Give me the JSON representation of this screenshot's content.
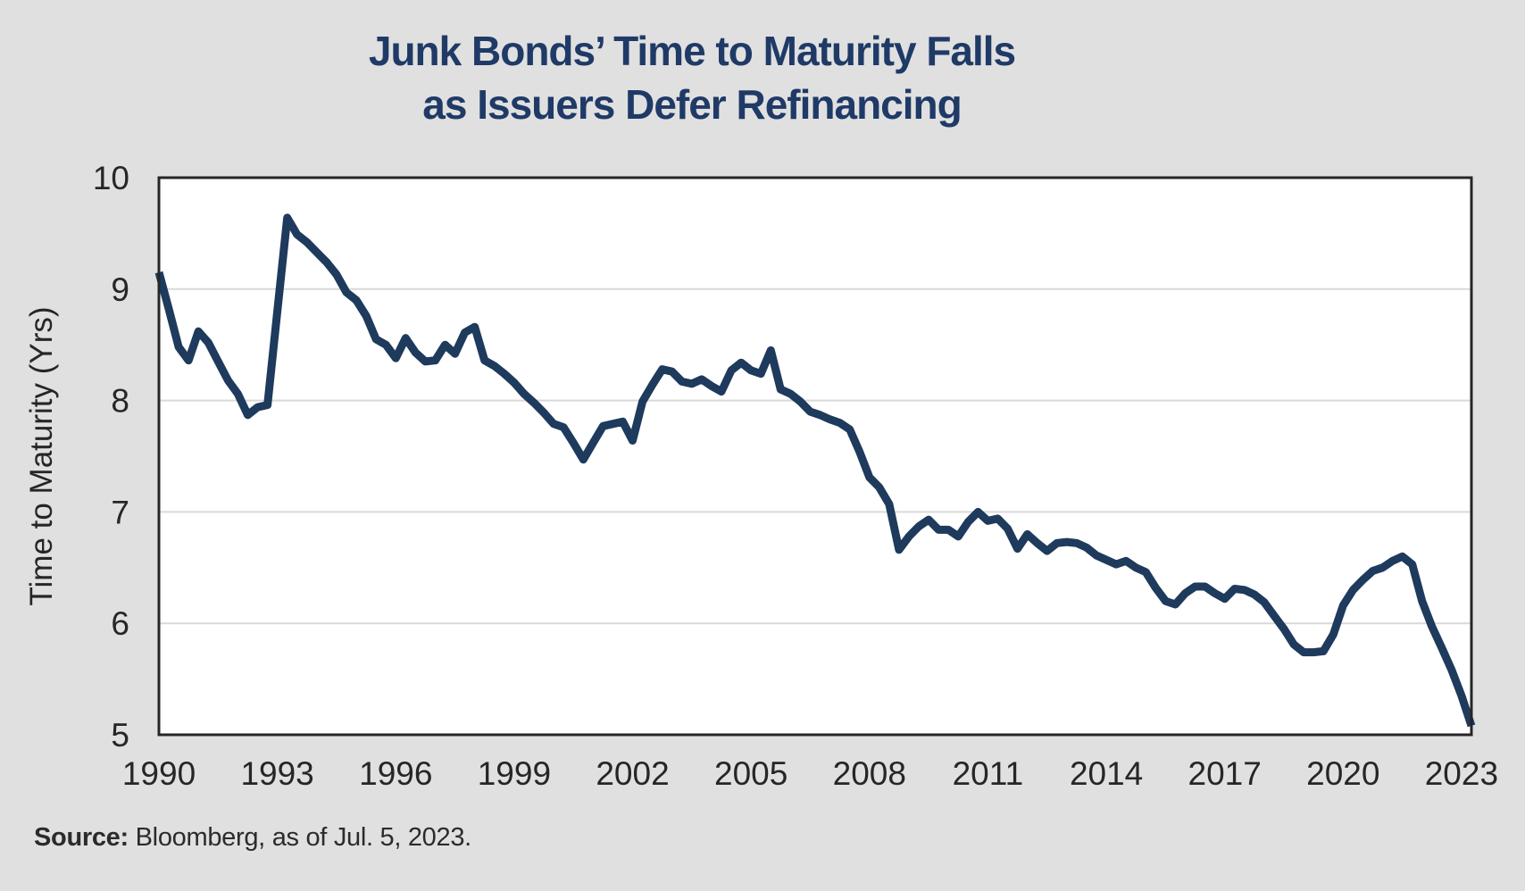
{
  "title": {
    "line1": "Junk Bonds’ Time to Maturity Falls",
    "line2": "as Issuers Defer Refinancing"
  },
  "source": {
    "label": "Source:",
    "text": " Bloomberg, as of Jul. 5, 2023."
  },
  "chart_data": {
    "type": "line",
    "title": "Junk Bonds’ Time to Maturity Falls as Issuers Defer Refinancing",
    "xlabel": "",
    "ylabel": "Time to Maturity (Yrs)",
    "ylim": [
      5,
      10
    ],
    "xlim": [
      1990,
      2023.25
    ],
    "y_ticks": [
      5,
      6,
      7,
      8,
      9,
      10
    ],
    "x_ticks": [
      1990,
      1993,
      1996,
      1999,
      2002,
      2005,
      2008,
      2011,
      2014,
      2017,
      2020,
      2023
    ],
    "grid": "horizontal",
    "legend": "none",
    "colors": {
      "line": "#1e3a5c",
      "title": "#1f3a66",
      "grid": "#d9d9d9",
      "axis": "#262626",
      "plot_bg": "#ffffff",
      "page_bg": "#e0e0e0",
      "text": "#262626"
    },
    "series": [
      {
        "name": "Time to Maturity (Yrs)",
        "x": [
          1990.0,
          1990.25,
          1990.5,
          1990.75,
          1991.0,
          1991.25,
          1991.5,
          1991.75,
          1992.0,
          1992.25,
          1992.5,
          1992.75,
          1993.0,
          1993.25,
          1993.5,
          1993.75,
          1994.0,
          1994.25,
          1994.5,
          1994.75,
          1995.0,
          1995.25,
          1995.5,
          1995.75,
          1996.0,
          1996.25,
          1996.5,
          1996.75,
          1997.0,
          1997.25,
          1997.5,
          1997.75,
          1998.0,
          1998.25,
          1998.5,
          1998.75,
          1999.0,
          1999.25,
          1999.5,
          1999.75,
          2000.0,
          2000.25,
          2000.5,
          2000.75,
          2001.0,
          2001.25,
          2001.5,
          2001.75,
          2002.0,
          2002.25,
          2002.5,
          2002.75,
          2003.0,
          2003.25,
          2003.5,
          2003.75,
          2004.0,
          2004.25,
          2004.5,
          2004.75,
          2005.0,
          2005.25,
          2005.5,
          2005.75,
          2006.0,
          2006.25,
          2006.5,
          2006.75,
          2007.0,
          2007.25,
          2007.5,
          2007.75,
          2008.0,
          2008.25,
          2008.5,
          2008.75,
          2009.0,
          2009.25,
          2009.5,
          2009.75,
          2010.0,
          2010.25,
          2010.5,
          2010.75,
          2011.0,
          2011.25,
          2011.5,
          2011.75,
          2012.0,
          2012.25,
          2012.5,
          2012.75,
          2013.0,
          2013.25,
          2013.5,
          2013.75,
          2014.0,
          2014.25,
          2014.5,
          2014.75,
          2015.0,
          2015.25,
          2015.5,
          2015.75,
          2016.0,
          2016.25,
          2016.5,
          2016.75,
          2017.0,
          2017.25,
          2017.5,
          2017.75,
          2018.0,
          2018.25,
          2018.5,
          2018.75,
          2019.0,
          2019.25,
          2019.5,
          2019.75,
          2020.0,
          2020.25,
          2020.5,
          2020.75,
          2021.0,
          2021.25,
          2021.5,
          2021.75,
          2022.0,
          2022.25,
          2022.5,
          2022.75,
          2023.0,
          2023.25
        ],
        "y": [
          9.15,
          8.82,
          8.48,
          8.36,
          8.62,
          8.52,
          8.35,
          8.18,
          8.06,
          7.87,
          7.94,
          7.96,
          8.8,
          9.64,
          9.49,
          9.42,
          9.33,
          9.24,
          9.13,
          8.97,
          8.9,
          8.76,
          8.55,
          8.5,
          8.38,
          8.56,
          8.43,
          8.35,
          8.36,
          8.5,
          8.42,
          8.61,
          8.66,
          8.36,
          8.31,
          8.24,
          8.16,
          8.06,
          7.98,
          7.89,
          7.79,
          7.76,
          7.62,
          7.47,
          7.62,
          7.77,
          7.79,
          7.81,
          7.64,
          7.99,
          8.14,
          8.28,
          8.26,
          8.17,
          8.15,
          8.19,
          8.13,
          8.08,
          8.27,
          8.34,
          8.27,
          8.24,
          8.45,
          8.1,
          8.06,
          7.99,
          7.9,
          7.87,
          7.83,
          7.8,
          7.74,
          7.54,
          7.31,
          7.22,
          7.07,
          6.66,
          6.78,
          6.87,
          6.93,
          6.84,
          6.84,
          6.78,
          6.91,
          7.0,
          6.92,
          6.94,
          6.85,
          6.67,
          6.8,
          6.72,
          6.65,
          6.72,
          6.73,
          6.72,
          6.68,
          6.61,
          6.57,
          6.53,
          6.56,
          6.5,
          6.46,
          6.32,
          6.2,
          6.17,
          6.27,
          6.33,
          6.33,
          6.27,
          6.22,
          6.31,
          6.3,
          6.26,
          6.19,
          6.07,
          5.95,
          5.81,
          5.74,
          5.74,
          5.75,
          5.9,
          6.16,
          6.3,
          6.39,
          6.47,
          6.5,
          6.56,
          6.6,
          6.53,
          6.2,
          5.97,
          5.78,
          5.58,
          5.35,
          5.08
        ]
      }
    ]
  }
}
